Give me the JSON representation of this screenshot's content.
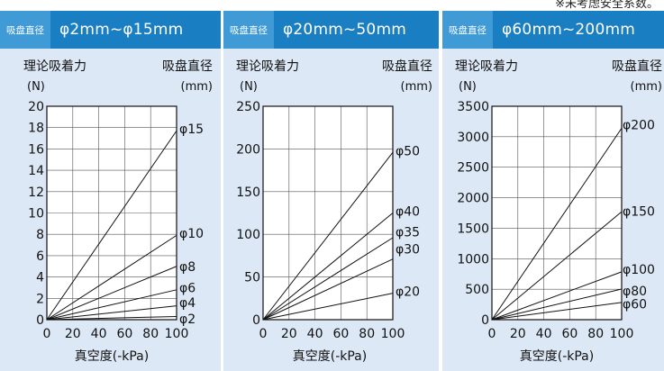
{
  "note": "※未考虑安全系数。",
  "panels": [
    {
      "tag": "吸盘直径",
      "range": "φ2mm~φ15mm",
      "ylabel_line1": "理论吸着力",
      "ylabel_line2": "(N)",
      "dlabel_line1": "吸盘直径",
      "dlabel_line2": "(mm)",
      "xlabel": "真空度(-kPa)"
    },
    {
      "tag": "吸盘直径",
      "range": "φ20mm~50mm",
      "ylabel_line1": "理论吸着力",
      "ylabel_line2": "(N)",
      "dlabel_line1": "吸盘直径",
      "dlabel_line2": "(mm)",
      "xlabel": "真空度(-kPa)"
    },
    {
      "tag": "吸盘直径",
      "range": "φ60mm~200mm",
      "ylabel_line1": "理论吸着力",
      "ylabel_line2": "(N)",
      "dlabel_line1": "吸盘直径",
      "dlabel_line2": "(mm)",
      "xlabel": "真空度(-kPa)"
    }
  ],
  "chart_data": [
    {
      "type": "line",
      "x_ticks": [
        0,
        20,
        40,
        60,
        80,
        100
      ],
      "y_ticks": [
        0,
        2,
        4,
        6,
        8,
        10,
        12,
        14,
        16,
        18,
        20
      ],
      "xlim": [
        0,
        100
      ],
      "ylim": [
        0,
        20
      ],
      "grid": true,
      "series": [
        {
          "name": "φ15",
          "x": [
            0,
            100
          ],
          "y": [
            0,
            17.7
          ]
        },
        {
          "name": "φ10",
          "x": [
            0,
            100
          ],
          "y": [
            0,
            7.9
          ]
        },
        {
          "name": "φ8",
          "x": [
            0,
            100
          ],
          "y": [
            0,
            5.0
          ]
        },
        {
          "name": "φ6",
          "x": [
            0,
            100
          ],
          "y": [
            0,
            2.8
          ]
        },
        {
          "name": "φ4",
          "x": [
            0,
            100
          ],
          "y": [
            0,
            1.3
          ]
        },
        {
          "name": "φ2",
          "x": [
            0,
            100
          ],
          "y": [
            0,
            0.3
          ]
        }
      ],
      "label_y": [
        17.9,
        8.1,
        5.0,
        3.0,
        1.6,
        0.1
      ]
    },
    {
      "type": "line",
      "x_ticks": [
        0,
        20,
        40,
        60,
        80,
        100
      ],
      "y_ticks": [
        0,
        50,
        100,
        150,
        200,
        250
      ],
      "xlim": [
        0,
        100
      ],
      "ylim": [
        0,
        250
      ],
      "grid": true,
      "series": [
        {
          "name": "φ50",
          "x": [
            0,
            100
          ],
          "y": [
            0,
            196
          ]
        },
        {
          "name": "φ40",
          "x": [
            0,
            100
          ],
          "y": [
            0,
            125
          ]
        },
        {
          "name": "φ35",
          "x": [
            0,
            100
          ],
          "y": [
            0,
            96
          ]
        },
        {
          "name": "φ30",
          "x": [
            0,
            100
          ],
          "y": [
            0,
            71
          ]
        },
        {
          "name": "φ20",
          "x": [
            0,
            100
          ],
          "y": [
            0,
            31
          ]
        }
      ],
      "label_y": [
        198,
        127,
        103,
        83,
        33
      ]
    },
    {
      "type": "line",
      "x_ticks": [
        0,
        20,
        40,
        60,
        80,
        100
      ],
      "y_ticks": [
        0,
        500,
        1000,
        1500,
        2000,
        2500,
        3000,
        3500
      ],
      "xlim": [
        0,
        100
      ],
      "ylim": [
        0,
        3500
      ],
      "grid": true,
      "series": [
        {
          "name": "φ200",
          "x": [
            0,
            100
          ],
          "y": [
            0,
            3140
          ]
        },
        {
          "name": "φ150",
          "x": [
            0,
            100
          ],
          "y": [
            0,
            1770
          ]
        },
        {
          "name": "φ100",
          "x": [
            0,
            100
          ],
          "y": [
            0,
            785
          ]
        },
        {
          "name": "φ80",
          "x": [
            0,
            100
          ],
          "y": [
            0,
            502
          ]
        },
        {
          "name": "φ60",
          "x": [
            0,
            100
          ],
          "y": [
            0,
            283
          ]
        }
      ],
      "label_y": [
        3200,
        1780,
        830,
        470,
        260
      ]
    }
  ]
}
